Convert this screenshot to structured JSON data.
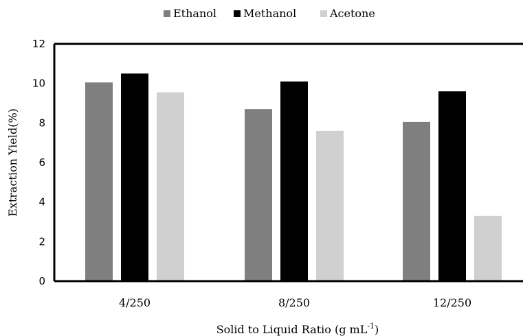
{
  "chart_data": {
    "type": "bar",
    "categories": [
      "4/250",
      "8/250",
      "12/250"
    ],
    "series": [
      {
        "name": "Ethanol",
        "color": "#7f7f7f",
        "values": [
          10.05,
          8.7,
          8.05
        ]
      },
      {
        "name": "Methanol",
        "color": "#000000",
        "values": [
          10.5,
          10.1,
          9.6
        ]
      },
      {
        "name": "Acetone",
        "color": "#d0d0d0",
        "values": [
          9.55,
          7.6,
          3.3
        ]
      }
    ],
    "xlabel": "Solid to Liquid Ratio (g mL",
    "xlabel_superscript": "-1",
    "xlabel_suffix": ")",
    "ylabel": "Extraction Yield(%)",
    "ylim": [
      0,
      12
    ],
    "yticks": [
      "0",
      "2",
      "4",
      "6",
      "8",
      "10",
      "12"
    ],
    "grid": false,
    "legend_position": "top-center"
  }
}
